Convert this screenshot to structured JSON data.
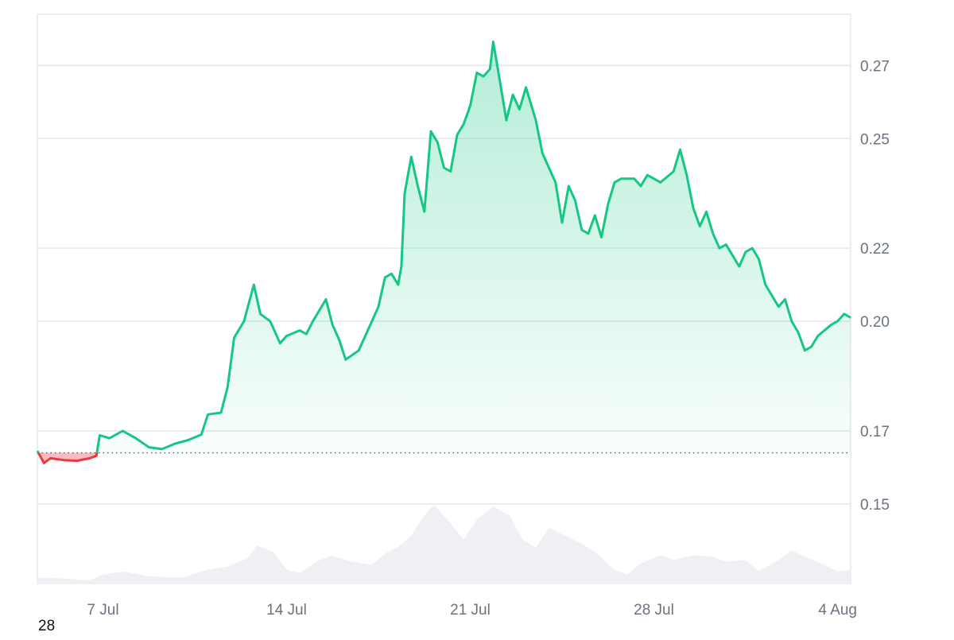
{
  "chart_data": {
    "type": "line",
    "title": "",
    "xlabel": "",
    "ylabel": "",
    "x_ticks": [
      {
        "label": "7 Jul",
        "date": "2024-07-07"
      },
      {
        "label": "14 Jul",
        "date": "2024-07-14"
      },
      {
        "label": "21 Jul",
        "date": "2024-07-21"
      },
      {
        "label": "28 Jul",
        "date": "2024-07-28"
      },
      {
        "label": "4 Aug",
        "date": "2024-08-04"
      }
    ],
    "y_ticks": [
      "0.15",
      "0.17",
      "0.20",
      "0.22",
      "0.25",
      "0.27"
    ],
    "y_tick_values": [
      0.15,
      0.17,
      0.2,
      0.22,
      0.25,
      0.27
    ],
    "ylim": [
      0.128,
      0.284
    ],
    "xlim": [
      "2024-07-04T12:00",
      "2024-08-04T12:00"
    ],
    "baseline": 0.164,
    "grid": true,
    "colors": {
      "up": "#16c784",
      "down": "#ea3943",
      "grid": "#e5e7eb",
      "volume": "#eef0f3",
      "tick": "#6b7280"
    },
    "series": [
      {
        "values": [
          [
            "2024-07-04T12:00",
            0.1645
          ],
          [
            "2024-07-04T18:00",
            0.1612
          ],
          [
            "2024-07-05T00:00",
            0.1625
          ],
          [
            "2024-07-05T12:00",
            0.162
          ],
          [
            "2024-07-06T00:00",
            0.1618
          ],
          [
            "2024-07-06T12:00",
            0.1625
          ],
          [
            "2024-07-06T18:00",
            0.1632
          ],
          [
            "2024-07-06T21:00",
            0.1688
          ],
          [
            "2024-07-07T06:00",
            0.168
          ],
          [
            "2024-07-07T18:00",
            0.17
          ],
          [
            "2024-07-08T06:00",
            0.168
          ],
          [
            "2024-07-08T18:00",
            0.1655
          ],
          [
            "2024-07-09T06:00",
            0.165
          ],
          [
            "2024-07-09T18:00",
            0.1665
          ],
          [
            "2024-07-10T06:00",
            0.1675
          ],
          [
            "2024-07-10T18:00",
            0.169
          ],
          [
            "2024-07-11T00:00",
            0.1745
          ],
          [
            "2024-07-11T12:00",
            0.175
          ],
          [
            "2024-07-11T18:00",
            0.182
          ],
          [
            "2024-07-12T00:00",
            0.1955
          ],
          [
            "2024-07-12T09:00",
            0.2
          ],
          [
            "2024-07-12T18:00",
            0.21
          ],
          [
            "2024-07-13T00:00",
            0.202
          ],
          [
            "2024-07-13T09:00",
            0.2
          ],
          [
            "2024-07-13T18:00",
            0.194
          ],
          [
            "2024-07-14T00:00",
            0.196
          ],
          [
            "2024-07-14T12:00",
            0.1975
          ],
          [
            "2024-07-14T18:00",
            0.1965
          ],
          [
            "2024-07-15T00:00",
            0.2
          ],
          [
            "2024-07-15T12:00",
            0.206
          ],
          [
            "2024-07-15T18:00",
            0.199
          ],
          [
            "2024-07-16T00:00",
            0.195
          ],
          [
            "2024-07-16T06:00",
            0.1895
          ],
          [
            "2024-07-16T18:00",
            0.192
          ],
          [
            "2024-07-17T00:00",
            0.196
          ],
          [
            "2024-07-17T06:00",
            0.2
          ],
          [
            "2024-07-17T12:00",
            0.204
          ],
          [
            "2024-07-17T18:00",
            0.212
          ],
          [
            "2024-07-18T00:00",
            0.213
          ],
          [
            "2024-07-18T06:00",
            0.21
          ],
          [
            "2024-07-18T09:00",
            0.215
          ],
          [
            "2024-07-18T12:00",
            0.235
          ],
          [
            "2024-07-18T18:00",
            0.245
          ],
          [
            "2024-07-19T00:00",
            0.237
          ],
          [
            "2024-07-19T06:00",
            0.23
          ],
          [
            "2024-07-19T12:00",
            0.252
          ],
          [
            "2024-07-19T18:00",
            0.249
          ],
          [
            "2024-07-20T00:00",
            0.242
          ],
          [
            "2024-07-20T06:00",
            0.241
          ],
          [
            "2024-07-20T12:00",
            0.251
          ],
          [
            "2024-07-20T18:00",
            0.254
          ],
          [
            "2024-07-21T00:00",
            0.259
          ],
          [
            "2024-07-21T06:00",
            0.268
          ],
          [
            "2024-07-21T12:00",
            0.267
          ],
          [
            "2024-07-21T18:00",
            0.269
          ],
          [
            "2024-07-21T21:00",
            0.2765
          ],
          [
            "2024-07-22T03:00",
            0.266
          ],
          [
            "2024-07-22T09:00",
            0.255
          ],
          [
            "2024-07-22T15:00",
            0.262
          ],
          [
            "2024-07-22T21:00",
            0.258
          ],
          [
            "2024-07-23T03:00",
            0.264
          ],
          [
            "2024-07-23T12:00",
            0.255
          ],
          [
            "2024-07-23T18:00",
            0.246
          ],
          [
            "2024-07-24T00:00",
            0.242
          ],
          [
            "2024-07-24T06:00",
            0.238
          ],
          [
            "2024-07-24T12:00",
            0.227
          ],
          [
            "2024-07-24T18:00",
            0.237
          ],
          [
            "2024-07-25T00:00",
            0.233
          ],
          [
            "2024-07-25T06:00",
            0.225
          ],
          [
            "2024-07-25T12:00",
            0.224
          ],
          [
            "2024-07-25T18:00",
            0.229
          ],
          [
            "2024-07-26T00:00",
            0.223
          ],
          [
            "2024-07-26T06:00",
            0.232
          ],
          [
            "2024-07-26T12:00",
            0.238
          ],
          [
            "2024-07-26T18:00",
            0.239
          ],
          [
            "2024-07-27T06:00",
            0.239
          ],
          [
            "2024-07-27T12:00",
            0.237
          ],
          [
            "2024-07-27T18:00",
            0.24
          ],
          [
            "2024-07-28T06:00",
            0.238
          ],
          [
            "2024-07-28T18:00",
            0.241
          ],
          [
            "2024-07-29T00:00",
            0.247
          ],
          [
            "2024-07-29T06:00",
            0.24
          ],
          [
            "2024-07-29T12:00",
            0.231
          ],
          [
            "2024-07-29T18:00",
            0.226
          ],
          [
            "2024-07-30T00:00",
            0.23
          ],
          [
            "2024-07-30T06:00",
            0.224
          ],
          [
            "2024-07-30T12:00",
            0.22
          ],
          [
            "2024-07-30T18:00",
            0.221
          ],
          [
            "2024-07-31T00:00",
            0.218
          ],
          [
            "2024-07-31T06:00",
            0.215
          ],
          [
            "2024-07-31T12:00",
            0.219
          ],
          [
            "2024-07-31T18:00",
            0.22
          ],
          [
            "2024-08-01T00:00",
            0.217
          ],
          [
            "2024-08-01T06:00",
            0.21
          ],
          [
            "2024-08-01T12:00",
            0.207
          ],
          [
            "2024-08-01T18:00",
            0.204
          ],
          [
            "2024-08-02T00:00",
            0.206
          ],
          [
            "2024-08-02T06:00",
            0.2
          ],
          [
            "2024-08-02T12:00",
            0.197
          ],
          [
            "2024-08-02T18:00",
            0.192
          ],
          [
            "2024-08-03T00:00",
            0.193
          ],
          [
            "2024-08-03T06:00",
            0.196
          ],
          [
            "2024-08-03T12:00",
            0.1975
          ],
          [
            "2024-08-03T18:00",
            0.199
          ],
          [
            "2024-08-04T00:00",
            0.2
          ],
          [
            "2024-08-04T06:00",
            0.202
          ],
          [
            "2024-08-04T12:00",
            0.201
          ]
        ]
      }
    ],
    "volume": [
      [
        "2024-07-04T12:00",
        0.08
      ],
      [
        "2024-07-05T00:00",
        0.08
      ],
      [
        "2024-07-06T12:00",
        0.05
      ],
      [
        "2024-07-07T00:00",
        0.12
      ],
      [
        "2024-07-07T18:00",
        0.16
      ],
      [
        "2024-07-08T18:00",
        0.1
      ],
      [
        "2024-07-10T00:00",
        0.08
      ],
      [
        "2024-07-11T00:00",
        0.18
      ],
      [
        "2024-07-11T18:00",
        0.22
      ],
      [
        "2024-07-12T12:00",
        0.32
      ],
      [
        "2024-07-12T21:00",
        0.48
      ],
      [
        "2024-07-13T12:00",
        0.4
      ],
      [
        "2024-07-14T00:00",
        0.18
      ],
      [
        "2024-07-14T12:00",
        0.14
      ],
      [
        "2024-07-15T06:00",
        0.3
      ],
      [
        "2024-07-15T18:00",
        0.35
      ],
      [
        "2024-07-16T12:00",
        0.28
      ],
      [
        "2024-07-17T06:00",
        0.24
      ],
      [
        "2024-07-17T18:00",
        0.38
      ],
      [
        "2024-07-18T06:00",
        0.46
      ],
      [
        "2024-07-18T18:00",
        0.6
      ],
      [
        "2024-07-19T06:00",
        0.85
      ],
      [
        "2024-07-19T15:00",
        0.98
      ],
      [
        "2024-07-20T06:00",
        0.75
      ],
      [
        "2024-07-20T18:00",
        0.55
      ],
      [
        "2024-07-21T06:00",
        0.8
      ],
      [
        "2024-07-21T21:00",
        0.96
      ],
      [
        "2024-07-22T12:00",
        0.85
      ],
      [
        "2024-07-23T00:00",
        0.55
      ],
      [
        "2024-07-23T12:00",
        0.45
      ],
      [
        "2024-07-24T00:00",
        0.7
      ],
      [
        "2024-07-24T12:00",
        0.62
      ],
      [
        "2024-07-25T06:00",
        0.5
      ],
      [
        "2024-07-25T18:00",
        0.4
      ],
      [
        "2024-07-26T12:00",
        0.18
      ],
      [
        "2024-07-27T00:00",
        0.12
      ],
      [
        "2024-07-27T12:00",
        0.26
      ],
      [
        "2024-07-28T06:00",
        0.36
      ],
      [
        "2024-07-28T18:00",
        0.3
      ],
      [
        "2024-07-29T12:00",
        0.36
      ],
      [
        "2024-07-30T06:00",
        0.34
      ],
      [
        "2024-07-30T18:00",
        0.28
      ],
      [
        "2024-07-31T12:00",
        0.3
      ],
      [
        "2024-08-01T00:00",
        0.16
      ],
      [
        "2024-08-01T18:00",
        0.3
      ],
      [
        "2024-08-02T06:00",
        0.42
      ],
      [
        "2024-08-02T18:00",
        0.34
      ],
      [
        "2024-08-03T12:00",
        0.24
      ],
      [
        "2024-08-04T00:00",
        0.16
      ],
      [
        "2024-08-04T12:00",
        0.18
      ]
    ]
  },
  "corner_label": "28"
}
